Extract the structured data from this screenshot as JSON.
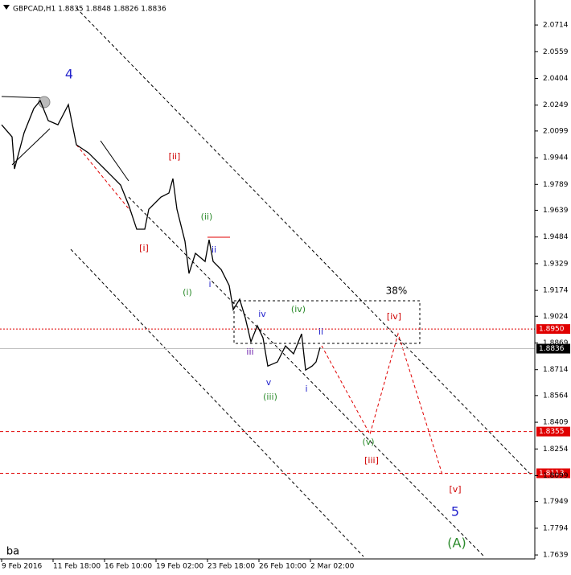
{
  "chart_data": {
    "type": "line",
    "title": "GBPCAD,H1  1.8835 1.8848 1.8826 1.8836",
    "x": [
      2,
      15,
      18,
      30,
      42,
      50,
      60,
      72,
      85,
      95,
      110,
      125,
      140,
      150,
      160,
      170,
      180,
      185,
      200,
      210,
      215,
      220,
      230,
      235,
      243,
      255,
      260,
      265,
      275,
      285,
      290,
      298,
      305,
      312,
      320,
      327,
      333,
      345,
      355,
      365,
      375,
      380,
      388,
      393,
      398
    ],
    "series": [
      {
        "color": "#000000",
        "values": [
          2.0135,
          2.0065,
          1.9879,
          2.0089,
          2.0229,
          2.0275,
          2.0159,
          2.0135,
          2.0252,
          2.0019,
          1.9972,
          1.9902,
          1.9832,
          1.9785,
          1.9669,
          1.9529,
          1.9529,
          1.9645,
          1.9715,
          1.9739,
          1.9823,
          1.9645,
          1.9459,
          1.9272,
          1.9389,
          1.9342,
          1.9468,
          1.9342,
          1.9295,
          1.9202,
          1.9062,
          1.9123,
          1.9015,
          1.8876,
          1.8969,
          1.8899,
          1.8735,
          1.8759,
          1.8852,
          1.8806,
          1.8922,
          1.8712,
          1.8735,
          1.8759,
          1.8843
        ]
      }
    ],
    "xlim": [
      0,
      665
    ],
    "xticks": [
      {
        "value": 2,
        "label": "9 Feb 2016"
      },
      {
        "value": 66,
        "label": "11 Feb 18:00"
      },
      {
        "value": 130,
        "label": "16 Feb 10:00"
      },
      {
        "value": 194,
        "label": "19 Feb 02:00"
      },
      {
        "value": 258,
        "label": "23 Feb 18:00"
      },
      {
        "value": 322,
        "label": "26 Feb 10:00"
      },
      {
        "value": 386,
        "label": "2 Mar 02:00"
      }
    ],
    "ylim": [
      1.7616,
      2.0859
    ],
    "yticks": [
      2.0714,
      2.0559,
      2.0404,
      2.0249,
      2.0099,
      1.9944,
      1.9789,
      1.9639,
      1.9484,
      1.9329,
      1.9174,
      1.9024,
      1.8869,
      1.8714,
      1.8564,
      1.8409,
      1.8254,
      1.8099,
      1.7949,
      1.7794,
      1.7639
    ],
    "levels": [
      {
        "value": 1.895,
        "label": "1.8950",
        "color": "#e00000"
      },
      {
        "value": 1.8836,
        "label": "1.8836",
        "color": "#000000"
      },
      {
        "value": 1.8355,
        "label": "1.8355",
        "color": "#e00000"
      },
      {
        "value": 1.8113,
        "label": "1.8113",
        "color": "#e00000"
      }
    ],
    "annotations": [
      {
        "text": "4",
        "color": "#2222cc"
      },
      {
        "text": "[ii]",
        "color": "#d00000"
      },
      {
        "text": "[i]",
        "color": "#d00000"
      },
      {
        "text": "(ii)",
        "color": "#2a8a2a"
      },
      {
        "text": "ii",
        "color": "#2222cc"
      },
      {
        "text": "(i)",
        "color": "#2a8a2a"
      },
      {
        "text": "i",
        "color": "#2222cc"
      },
      {
        "text": "38%",
        "color": "#000000"
      },
      {
        "text": "iv",
        "color": "#2222cc"
      },
      {
        "text": "(iv)",
        "color": "#2a8a2a"
      },
      {
        "text": "[iv]",
        "color": "#d00000"
      },
      {
        "text": "ii",
        "color": "#2222cc"
      },
      {
        "text": "iii",
        "color": "#6a1aaa"
      },
      {
        "text": "v",
        "color": "#2222cc"
      },
      {
        "text": "(iii)",
        "color": "#2a8a2a"
      },
      {
        "text": "i",
        "color": "#2222cc"
      },
      {
        "text": "(v)",
        "color": "#2a8a2a"
      },
      {
        "text": "[iii]",
        "color": "#d00000"
      },
      {
        "text": "[v]",
        "color": "#d00000"
      },
      {
        "text": "5",
        "color": "#2222cc"
      },
      {
        "text": "(A)",
        "color": "#2a8a2a"
      },
      {
        "text": "ba",
        "color": "#000000"
      }
    ]
  }
}
